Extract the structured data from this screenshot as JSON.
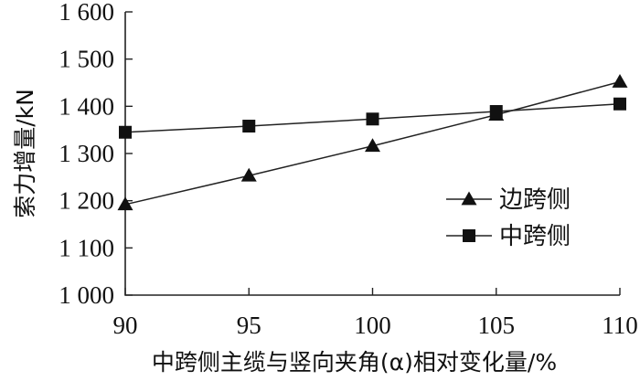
{
  "chart_data": {
    "type": "line",
    "title": "",
    "xlabel": "中跨侧主缆与竖向夹角(α)相对变化量/%",
    "ylabel": "索力增量/kN",
    "xlim": [
      90,
      110
    ],
    "ylim": [
      1000,
      1600
    ],
    "xticks": [
      90,
      95,
      100,
      105,
      110
    ],
    "xtick_labels": [
      "90",
      "95",
      "100",
      "105",
      "110"
    ],
    "yticks": [
      1000,
      1100,
      1200,
      1300,
      1400,
      1500,
      1600
    ],
    "ytick_labels": [
      "1 000",
      "1 100",
      "1 200",
      "1 300",
      "1 400",
      "1 500",
      "1 600"
    ],
    "grid": false,
    "legend_position": "center-right",
    "series": [
      {
        "name": "边跨侧",
        "marker": "triangle",
        "color": "#111111",
        "x": [
          90,
          95,
          100,
          105,
          110
        ],
        "y": [
          1192,
          1253,
          1316,
          1382,
          1452
        ]
      },
      {
        "name": "中跨侧",
        "marker": "square",
        "color": "#111111",
        "x": [
          90,
          95,
          100,
          105,
          110
        ],
        "y": [
          1345,
          1358,
          1373,
          1389,
          1405
        ]
      }
    ]
  }
}
